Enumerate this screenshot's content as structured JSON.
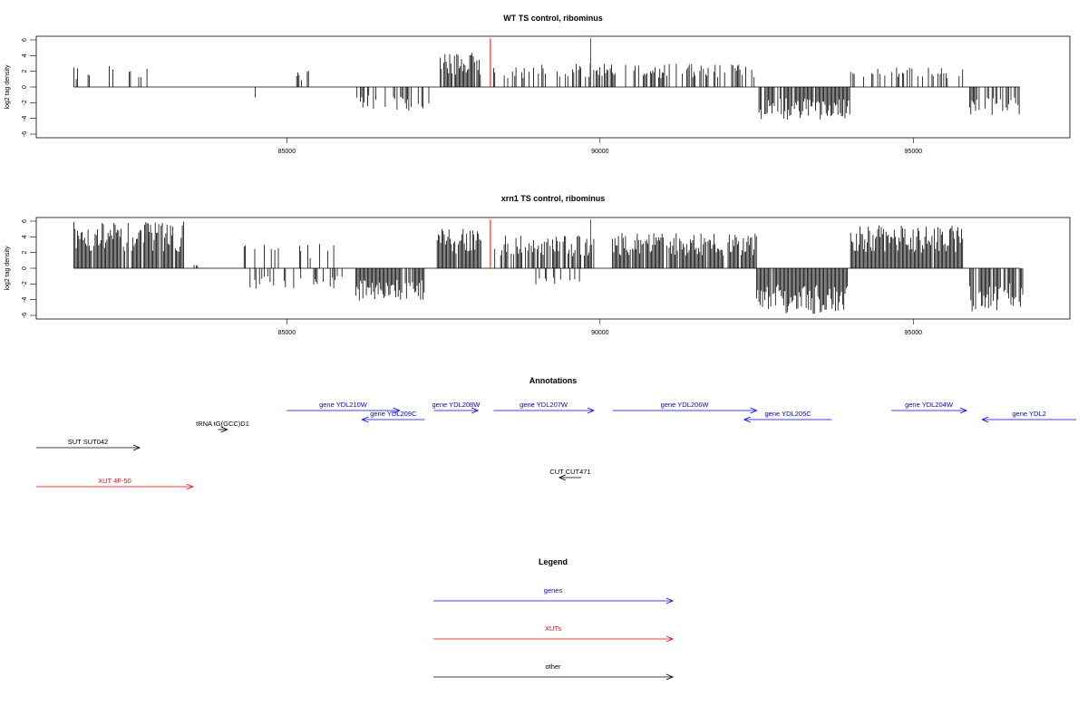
{
  "chart_data": [
    {
      "type": "bar",
      "title": "WT TS control, ribominus",
      "xlabel": "",
      "ylabel": "log2 tag density",
      "xlim": [
        81000,
        97500
      ],
      "ylim": [
        -6,
        6
      ],
      "xticks": [
        85000,
        90000,
        95000
      ],
      "yticks": [
        -6,
        -4,
        -2,
        0,
        2,
        4,
        6
      ],
      "grid": false,
      "highlight_color": "#ff0000",
      "bar_color": "#000000",
      "regions": [
        {
          "start": 81600,
          "end": 82900,
          "sign": 1,
          "max": 2.8,
          "density": 0.15
        },
        {
          "start": 84400,
          "end": 84500,
          "sign": -1,
          "max": 2.4,
          "density": 0.3
        },
        {
          "start": 85100,
          "end": 85400,
          "sign": 1,
          "max": 2.4,
          "density": 0.3
        },
        {
          "start": 86100,
          "end": 87300,
          "sign": -1,
          "max": 3.0,
          "density": 0.4
        },
        {
          "start": 87450,
          "end": 88100,
          "sign": 1,
          "max": 4.5,
          "density": 0.9
        },
        {
          "start": 88300,
          "end": 92500,
          "sign": 1,
          "max": 3.0,
          "density": 0.4
        },
        {
          "start": 92500,
          "end": 94000,
          "sign": -1,
          "max": 4.2,
          "density": 0.9
        },
        {
          "start": 94000,
          "end": 95800,
          "sign": 1,
          "max": 2.6,
          "density": 0.35
        },
        {
          "start": 95900,
          "end": 96700,
          "sign": -1,
          "max": 3.6,
          "density": 0.5
        }
      ],
      "highlights": [
        {
          "x": 88250,
          "y": 6.2
        },
        {
          "x": 89850,
          "y": 6.2
        }
      ]
    },
    {
      "type": "bar",
      "title": "xrn1 TS control, ribominus",
      "xlabel": "",
      "ylabel": "log2 tag density",
      "xlim": [
        81000,
        97500
      ],
      "ylim": [
        -6,
        6
      ],
      "xticks": [
        85000,
        90000,
        95000
      ],
      "yticks": [
        -6,
        -4,
        -2,
        0,
        2,
        4,
        6
      ],
      "grid": false,
      "highlight_color": "#ff0000",
      "bar_color": "#000000",
      "regions": [
        {
          "start": 81600,
          "end": 83350,
          "sign": 1,
          "max": 6.0,
          "density": 0.95
        },
        {
          "start": 83500,
          "end": 83600,
          "sign": 1,
          "max": 0.6,
          "density": 0.5
        },
        {
          "start": 84300,
          "end": 85900,
          "sign": 1,
          "max": 3.2,
          "density": 0.25
        },
        {
          "start": 84300,
          "end": 85900,
          "sign": -1,
          "max": 2.6,
          "density": 0.25
        },
        {
          "start": 86100,
          "end": 87200,
          "sign": -1,
          "max": 4.2,
          "density": 0.95
        },
        {
          "start": 87400,
          "end": 88100,
          "sign": 1,
          "max": 5.0,
          "density": 0.95
        },
        {
          "start": 88300,
          "end": 89900,
          "sign": 1,
          "max": 4.2,
          "density": 0.7
        },
        {
          "start": 88900,
          "end": 89700,
          "sign": -1,
          "max": 2.2,
          "density": 0.3
        },
        {
          "start": 90200,
          "end": 92500,
          "sign": 1,
          "max": 4.5,
          "density": 0.9
        },
        {
          "start": 92500,
          "end": 93950,
          "sign": -1,
          "max": 5.8,
          "density": 0.98
        },
        {
          "start": 94000,
          "end": 95800,
          "sign": 1,
          "max": 5.5,
          "density": 0.98
        },
        {
          "start": 95900,
          "end": 96750,
          "sign": -1,
          "max": 5.5,
          "density": 0.8
        }
      ],
      "highlights": [
        {
          "x": 88250,
          "y": 6.2
        },
        {
          "x": 89850,
          "y": 6.2
        }
      ]
    }
  ],
  "annotations": {
    "title": "Annotations",
    "features": [
      {
        "label": "gene YDL210W",
        "start": 85000,
        "end": 86800,
        "direction": "right",
        "color": "#0000ff",
        "track": 0
      },
      {
        "label": "gene YDL209C",
        "start": 86200,
        "end": 87200,
        "direction": "left",
        "color": "#0000ff",
        "track": 1
      },
      {
        "label": "gene YDL208W",
        "start": 87350,
        "end": 88050,
        "direction": "right",
        "color": "#0000ff",
        "track": 0
      },
      {
        "label": "gene YDL207W",
        "start": 88300,
        "end": 89900,
        "direction": "right",
        "color": "#0000ff",
        "track": 0
      },
      {
        "label": "gene YDL206W",
        "start": 90200,
        "end": 92500,
        "direction": "right",
        "color": "#0000ff",
        "track": 0
      },
      {
        "label": "gene YDL205C",
        "start": 92300,
        "end": 93700,
        "direction": "left",
        "color": "#0000ff",
        "track": 1
      },
      {
        "label": "gene YDL204W",
        "start": 94650,
        "end": 95850,
        "direction": "right",
        "color": "#0000ff",
        "track": 0
      },
      {
        "label": "gene YDL2",
        "start": 96100,
        "end": 97600,
        "direction": "left",
        "color": "#0000ff",
        "track": 1
      },
      {
        "label": "tRNA tG(GCC)D1",
        "start": 83900,
        "end": 84050,
        "direction": "right",
        "color": "#000000",
        "track": 2
      },
      {
        "label": "SUT SUT042",
        "start": 81000,
        "end": 82650,
        "direction": "right",
        "color": "#000000",
        "track": 3
      },
      {
        "label": "CUT CUT471",
        "start": 89350,
        "end": 89700,
        "direction": "left",
        "color": "#000000",
        "track": 4
      },
      {
        "label": "XUT 4F-50",
        "start": 81000,
        "end": 83500,
        "direction": "right",
        "color": "#ff0000",
        "track": 5
      }
    ]
  },
  "legend": {
    "title": "Legend",
    "items": [
      {
        "label": "genes",
        "color": "#0000ff"
      },
      {
        "label": "XUTs",
        "color": "#ff0000"
      },
      {
        "label": "other",
        "color": "#000000"
      }
    ]
  }
}
